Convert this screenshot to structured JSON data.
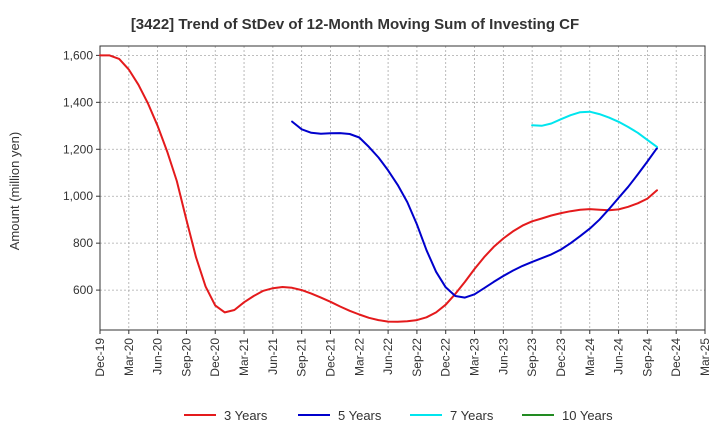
{
  "chart_data": {
    "type": "line",
    "title": "[3422]  Trend of StDev of 12-Month Moving Sum of Investing CF",
    "xlabel": "",
    "ylabel": "Amount (million yen)",
    "x_ticks": [
      "Dec-19",
      "Mar-20",
      "Jun-20",
      "Sep-20",
      "Dec-20",
      "Mar-21",
      "Jun-21",
      "Sep-21",
      "Dec-21",
      "Mar-22",
      "Jun-22",
      "Sep-22",
      "Dec-22",
      "Mar-23",
      "Jun-23",
      "Sep-23",
      "Dec-23",
      "Mar-24",
      "Jun-24",
      "Sep-24",
      "Dec-24",
      "Mar-25"
    ],
    "x_range": [
      "2019-12",
      "2025-03"
    ],
    "y_ticks": [
      600,
      800,
      1000,
      1200,
      1400,
      1600
    ],
    "ylim": [
      430,
      1640
    ],
    "grid": true,
    "legend_position": "bottom",
    "series": [
      {
        "name": "3 Years",
        "color": "#e41a1c",
        "points": [
          [
            "2019-12",
            1600
          ],
          [
            "2020-01",
            1600
          ],
          [
            "2020-02",
            1585
          ],
          [
            "2020-03",
            1540
          ],
          [
            "2020-04",
            1475
          ],
          [
            "2020-05",
            1395
          ],
          [
            "2020-06",
            1300
          ],
          [
            "2020-07",
            1190
          ],
          [
            "2020-08",
            1065
          ],
          [
            "2020-09",
            900
          ],
          [
            "2020-10",
            740
          ],
          [
            "2020-11",
            615
          ],
          [
            "2020-12",
            535
          ],
          [
            "2021-01",
            505
          ],
          [
            "2021-02",
            515
          ],
          [
            "2021-03",
            548
          ],
          [
            "2021-04",
            575
          ],
          [
            "2021-05",
            597
          ],
          [
            "2021-06",
            608
          ],
          [
            "2021-07",
            613
          ],
          [
            "2021-08",
            610
          ],
          [
            "2021-09",
            600
          ],
          [
            "2021-10",
            585
          ],
          [
            "2021-11",
            568
          ],
          [
            "2021-12",
            550
          ],
          [
            "2022-01",
            530
          ],
          [
            "2022-02",
            512
          ],
          [
            "2022-03",
            496
          ],
          [
            "2022-04",
            482
          ],
          [
            "2022-05",
            472
          ],
          [
            "2022-06",
            466
          ],
          [
            "2022-07",
            465
          ],
          [
            "2022-08",
            467
          ],
          [
            "2022-09",
            472
          ],
          [
            "2022-10",
            484
          ],
          [
            "2022-11",
            505
          ],
          [
            "2022-12",
            538
          ],
          [
            "2023-01",
            584
          ],
          [
            "2023-02",
            635
          ],
          [
            "2023-03",
            690
          ],
          [
            "2023-04",
            740
          ],
          [
            "2023-05",
            784
          ],
          [
            "2023-06",
            820
          ],
          [
            "2023-07",
            850
          ],
          [
            "2023-08",
            875
          ],
          [
            "2023-09",
            893
          ],
          [
            "2023-10",
            905
          ],
          [
            "2023-11",
            918
          ],
          [
            "2023-12",
            928
          ],
          [
            "2024-01",
            936
          ],
          [
            "2024-02",
            942
          ],
          [
            "2024-03",
            945
          ],
          [
            "2024-04",
            942
          ],
          [
            "2024-05",
            940
          ],
          [
            "2024-06",
            944
          ],
          [
            "2024-07",
            955
          ],
          [
            "2024-08",
            970
          ],
          [
            "2024-09",
            990
          ],
          [
            "2024-10",
            1025
          ]
        ]
      },
      {
        "name": "5 Years",
        "color": "#0000cc",
        "points": [
          [
            "2021-08",
            1318
          ],
          [
            "2021-09",
            1285
          ],
          [
            "2021-10",
            1270
          ],
          [
            "2021-11",
            1266
          ],
          [
            "2021-12",
            1268
          ],
          [
            "2022-01",
            1269
          ],
          [
            "2022-02",
            1265
          ],
          [
            "2022-03",
            1250
          ],
          [
            "2022-04",
            1210
          ],
          [
            "2022-05",
            1165
          ],
          [
            "2022-06",
            1110
          ],
          [
            "2022-07",
            1048
          ],
          [
            "2022-08",
            975
          ],
          [
            "2022-09",
            880
          ],
          [
            "2022-10",
            770
          ],
          [
            "2022-11",
            678
          ],
          [
            "2022-12",
            612
          ],
          [
            "2023-01",
            575
          ],
          [
            "2023-02",
            568
          ],
          [
            "2023-03",
            582
          ],
          [
            "2023-04",
            608
          ],
          [
            "2023-05",
            635
          ],
          [
            "2023-06",
            660
          ],
          [
            "2023-07",
            683
          ],
          [
            "2023-08",
            703
          ],
          [
            "2023-09",
            720
          ],
          [
            "2023-10",
            736
          ],
          [
            "2023-11",
            752
          ],
          [
            "2023-12",
            773
          ],
          [
            "2024-01",
            800
          ],
          [
            "2024-02",
            830
          ],
          [
            "2024-03",
            862
          ],
          [
            "2024-04",
            900
          ],
          [
            "2024-05",
            945
          ],
          [
            "2024-06",
            993
          ],
          [
            "2024-07",
            1040
          ],
          [
            "2024-08",
            1093
          ],
          [
            "2024-09",
            1148
          ],
          [
            "2024-10",
            1205
          ]
        ]
      },
      {
        "name": "7 Years",
        "color": "#00e5ee",
        "points": [
          [
            "2023-09",
            1302
          ],
          [
            "2023-10",
            1300
          ],
          [
            "2023-11",
            1310
          ],
          [
            "2023-12",
            1328
          ],
          [
            "2024-01",
            1345
          ],
          [
            "2024-02",
            1358
          ],
          [
            "2024-03",
            1360
          ],
          [
            "2024-04",
            1350
          ],
          [
            "2024-05",
            1335
          ],
          [
            "2024-06",
            1317
          ],
          [
            "2024-07",
            1295
          ],
          [
            "2024-08",
            1270
          ],
          [
            "2024-09",
            1240
          ],
          [
            "2024-10",
            1210
          ]
        ]
      },
      {
        "name": "10 Years",
        "color": "#228b22",
        "points": []
      }
    ]
  }
}
